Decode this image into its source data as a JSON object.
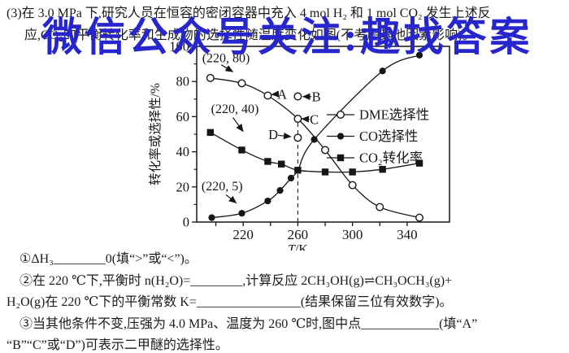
{
  "page": {
    "background": "#ffffff",
    "text_color": "#1b1b1b"
  },
  "watermark": {
    "text": "微信公众号关注:趣找答案",
    "color": "#2626cc"
  },
  "question": {
    "line1": "(3)在 3.0 MPa 下,研究人员在恒容的密闭容器中充入 4 mol H₂ 和 1 mol CO₂ 发生上述反",
    "line2": "应,CO₂的平衡转化率和生成物的选择性随温度变化如图(不考虑其他因素影响)。"
  },
  "sub_questions": {
    "q1": "①ΔH₃________0(填“>”或“<”)。",
    "q2_line1": "②在 220 ℃下,平衡时 n(H₂O)=________,计算反应 2CH₃OH(g)⇌CH₃OCH₃(g)+",
    "q2_line2": "H₂O(g)在 220 ℃下的平衡常数 K=________________(结果保留三位有效数字)。",
    "q3_line1": "③当其他条件不变,压强为 4.0 MPa、温度为 260 ℃时,图中点____________(填“A”",
    "q3_line2": "“B”“C”或“D”)可表示二甲醚的选择性。"
  },
  "chart_data": {
    "type": "line",
    "title": "",
    "xlabel_italic": "T",
    "xlabel_rest": "/K",
    "ylabel": "转化率或选择性/%",
    "xlim": [
      186,
      371
    ],
    "ylim": [
      0,
      100
    ],
    "xticks": [
      200,
      220,
      240,
      260,
      280,
      300,
      320,
      340
    ],
    "xticks_labeled": [
      220,
      260,
      300,
      340
    ],
    "yticks_major": [
      0,
      20,
      40,
      60,
      80,
      100
    ],
    "yticks_minor": [
      10,
      30,
      50,
      70,
      90
    ],
    "grid": false,
    "legend_position": "inside-right",
    "series": [
      {
        "name": "DME选择性",
        "marker": "circle-open",
        "points": [
          [
            196,
            82
          ],
          [
            219,
            79
          ],
          [
            238,
            72
          ],
          [
            260,
            58.8
          ],
          [
            280,
            41
          ],
          [
            300,
            21
          ],
          [
            320,
            8.5
          ],
          [
            349,
            2.5
          ]
        ]
      },
      {
        "name": "CO选择性",
        "marker": "circle-filled",
        "points": [
          [
            197,
            2.5
          ],
          [
            219,
            5
          ],
          [
            238,
            12
          ],
          [
            247,
            18
          ],
          [
            255,
            25
          ],
          [
            260,
            29.5
          ],
          [
            272,
            47
          ],
          [
            322,
            86
          ],
          [
            349,
            95
          ]
        ]
      },
      {
        "name": "CO₂转化率",
        "marker": "square-filled",
        "points": [
          [
            196,
            51
          ],
          [
            219,
            41
          ],
          [
            238,
            34.5
          ],
          [
            248,
            33
          ],
          [
            260,
            29.5
          ],
          [
            280,
            28.5
          ],
          [
            300,
            28.5
          ],
          [
            322,
            30
          ],
          [
            349,
            33.5
          ]
        ]
      }
    ],
    "isolated_points": [
      {
        "label": "B",
        "x": 260,
        "y": 71.5,
        "marker": "circle-open"
      },
      {
        "label": "D",
        "x": 260,
        "y": 48,
        "marker": "circle-open"
      }
    ],
    "point_labels": [
      {
        "text": "A",
        "tx": 248.5,
        "ty": 72.8,
        "from": [
          246,
          72.9
        ],
        "to": [
          240.8,
          72.6
        ]
      },
      {
        "text": "B",
        "tx": 273.5,
        "ty": 71.4,
        "from": [
          270,
          71.4
        ],
        "to": [
          263.6,
          71.4
        ]
      },
      {
        "text": "C",
        "tx": 272,
        "ty": 58.4,
        "from": [
          268.5,
          58.5
        ],
        "to": [
          262.8,
          58.8
        ]
      },
      {
        "text": "D",
        "tx": 242,
        "ty": 49.7,
        "from": [
          245.5,
          49.4
        ],
        "to": [
          255,
          48.6
        ]
      }
    ],
    "coord_labels": [
      {
        "text": "(220, 80)",
        "tx": 190,
        "ty": 93.5,
        "from": [
          204,
          89.5
        ],
        "to": [
          212.5,
          85.5
        ]
      },
      {
        "text": "(220, 40)",
        "tx": 196.5,
        "ty": 64.5,
        "from": [
          212.5,
          59.5
        ],
        "to": [
          220,
          51.5
        ]
      },
      {
        "text": "(220, 5)",
        "tx": 189.5,
        "ty": 20.5,
        "from": [
          207.5,
          15.5
        ],
        "to": [
          215,
          10.8
        ]
      }
    ],
    "dashed_line": {
      "x": 260,
      "y_from": 0,
      "y_to": 58.8
    }
  }
}
